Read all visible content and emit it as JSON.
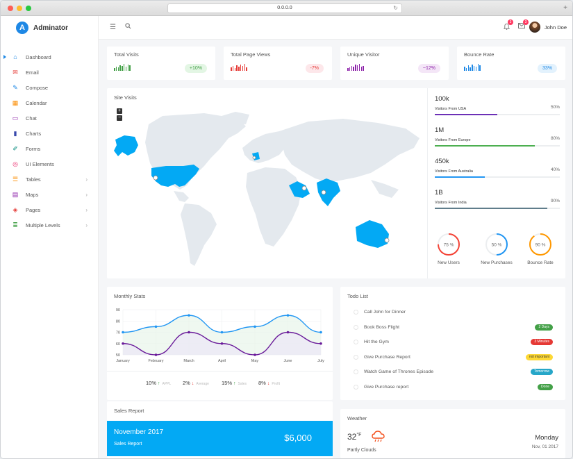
{
  "browser": {
    "url": "0.0.0.0"
  },
  "brand": {
    "logo_letter": "A",
    "name": "Adminator"
  },
  "topbar": {
    "user_name": "John Doe",
    "notif_count": "3",
    "mail_count": "3"
  },
  "sidebar": {
    "items": [
      {
        "label": "Dashboard",
        "icon": "home-icon",
        "color": "#1e88e5",
        "glyph": "⌂",
        "active": true
      },
      {
        "label": "Email",
        "icon": "mail-icon",
        "color": "#e53935",
        "glyph": "✉"
      },
      {
        "label": "Compose",
        "icon": "compose-icon",
        "color": "#1e88e5",
        "glyph": "✎"
      },
      {
        "label": "Calendar",
        "icon": "calendar-icon",
        "color": "#fb8c00",
        "glyph": "▦"
      },
      {
        "label": "Chat",
        "icon": "chat-icon",
        "color": "#8e24aa",
        "glyph": "▭"
      },
      {
        "label": "Charts",
        "icon": "charts-icon",
        "color": "#3949ab",
        "glyph": "▮"
      },
      {
        "label": "Forms",
        "icon": "forms-icon",
        "color": "#00897b",
        "glyph": "✐"
      },
      {
        "label": "UI Elements",
        "icon": "ui-elements-icon",
        "color": "#e91e63",
        "glyph": "◎"
      },
      {
        "label": "Tables",
        "icon": "tables-icon",
        "color": "#fb8c00",
        "glyph": "☰",
        "chevron": true
      },
      {
        "label": "Maps",
        "icon": "maps-icon",
        "color": "#8e24aa",
        "glyph": "▤",
        "chevron": true
      },
      {
        "label": "Pages",
        "icon": "pages-icon",
        "color": "#e53935",
        "glyph": "◈",
        "chevron": true
      },
      {
        "label": "Multiple Levels",
        "icon": "levels-icon",
        "color": "#43a047",
        "glyph": "≣",
        "chevron": true
      }
    ]
  },
  "stats": [
    {
      "title": "Total Visits",
      "value": "+10%",
      "color": "#43a047",
      "bg": "#e3f6e4"
    },
    {
      "title": "Total Page Views",
      "value": "-7%",
      "color": "#e53935",
      "bg": "#fde7ea"
    },
    {
      "title": "Unique Visitor",
      "value": "~12%",
      "color": "#8e24aa",
      "bg": "#f4e6f7"
    },
    {
      "title": "Bounce Rate",
      "value": "33%",
      "color": "#1e88e5",
      "bg": "#e3f2fd"
    }
  ],
  "site_visits": {
    "title": "Site Visits",
    "zoom_in": "+",
    "zoom_out": "−",
    "visitors": [
      {
        "value": "100k",
        "label": "Visitors From USA",
        "pct": "50%",
        "fill": 0.5,
        "color": "#6c30b6"
      },
      {
        "value": "1M",
        "label": "Visitors From Europe",
        "pct": "80%",
        "fill": 0.8,
        "color": "#4caf50"
      },
      {
        "value": "450k",
        "label": "Visitors From Australia",
        "pct": "40%",
        "fill": 0.4,
        "color": "#2196f3"
      },
      {
        "value": "1B",
        "label": "Visitors From India",
        "pct": "90%",
        "fill": 0.9,
        "color": "#607d8b"
      }
    ],
    "donuts": [
      {
        "label": "New Users",
        "pct_text": "75 %",
        "fraction": 0.75,
        "color": "#f44336"
      },
      {
        "label": "New Purchases",
        "pct_text": "50 %",
        "fraction": 0.5,
        "color": "#2196f3"
      },
      {
        "label": "Bounce Rate",
        "pct_text": "90 %",
        "fraction": 0.9,
        "color": "#ff9800"
      }
    ]
  },
  "monthly_stats": {
    "title": "Monthly Stats",
    "summary": [
      {
        "value": "10%",
        "arrow": "↑",
        "arrow_color": "#43a047",
        "label": "APPL"
      },
      {
        "value": "2%",
        "arrow": "↓",
        "arrow_color": "#e53935",
        "label": "Average"
      },
      {
        "value": "15%",
        "arrow": "↑",
        "arrow_color": "#43a047",
        "label": "Sales"
      },
      {
        "value": "8%",
        "arrow": "↓",
        "arrow_color": "#e53935",
        "label": "Profit"
      }
    ]
  },
  "chart_data": {
    "type": "line",
    "categories": [
      "January",
      "February",
      "March",
      "April",
      "May",
      "June",
      "July"
    ],
    "ylim": [
      50,
      90
    ],
    "yticks": [
      "90",
      "80",
      "70",
      "60",
      "50"
    ],
    "grid": true,
    "series": [
      {
        "values": [
          70,
          75,
          85,
          70,
          75,
          85,
          70
        ],
        "color": "#2196f3"
      },
      {
        "values": [
          60,
          50,
          70,
          60,
          50,
          70,
          60
        ],
        "color": "#6a1b9a"
      }
    ]
  },
  "todo": {
    "title": "Todo List",
    "items": [
      {
        "text": "Call John for Dinner",
        "tag": ""
      },
      {
        "text": "Book Boss Flight",
        "tag": "2 Days",
        "tag_color": "#43a047"
      },
      {
        "text": "Hit the Gym",
        "tag": "3 Minutes",
        "tag_color": "#e53935"
      },
      {
        "text": "Give Purchase Report",
        "tag": "not important",
        "tag_color": "#fdd835",
        "tag_text_color": "#333"
      },
      {
        "text": "Watch Game of Thrones Episode",
        "tag": "Tomorrow",
        "tag_color": "#26a6c8"
      },
      {
        "text": "Give Purchase report",
        "tag": "Done",
        "tag_color": "#43a047"
      }
    ]
  },
  "sales_report": {
    "title": "Sales Report",
    "month": "November 2017",
    "subtitle": "Sales Report",
    "amount": "$6,000"
  },
  "weather": {
    "title": "Weather",
    "temp": "32",
    "unit": "°F",
    "desc": "Partly Clouds",
    "day": "Monday",
    "date": "Nov, 01 2017",
    "icon": "cloud-icon"
  }
}
